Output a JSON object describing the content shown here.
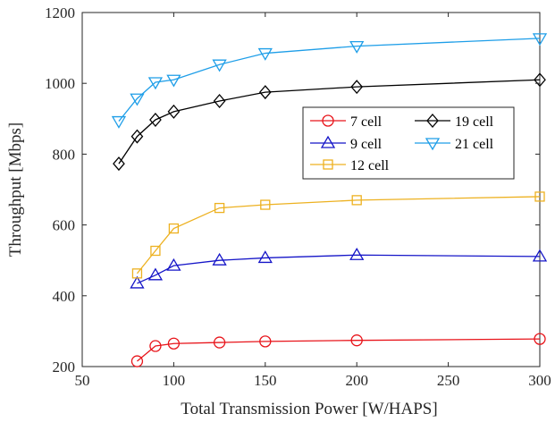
{
  "chart_data": {
    "type": "line",
    "title": "",
    "xlabel": "Total Transmission Power [W/HAPS]",
    "ylabel": "Throughput [Mbps]",
    "xlim": [
      50,
      300
    ],
    "ylim": [
      200,
      1200
    ],
    "xticks": [
      "50",
      "100",
      "150",
      "200",
      "250",
      "300"
    ],
    "yticks": [
      "200",
      "400",
      "600",
      "800",
      "1000",
      "1200"
    ],
    "grid": false,
    "legend_position": "center-right",
    "series": [
      {
        "name": "7 cell",
        "color": "#e8141a",
        "marker": "circle",
        "x": [
          80,
          90,
          100,
          125,
          150,
          200,
          300
        ],
        "y": [
          215,
          258,
          265,
          268,
          271,
          274,
          278
        ]
      },
      {
        "name": "9 cell",
        "color": "#1515c8",
        "marker": "triangle-up",
        "x": [
          80,
          90,
          100,
          125,
          150,
          200,
          300
        ],
        "y": [
          435,
          458,
          485,
          500,
          507,
          515,
          511
        ]
      },
      {
        "name": "12 cell",
        "color": "#edb120",
        "marker": "square",
        "x": [
          80,
          90,
          100,
          125,
          150,
          200,
          300
        ],
        "y": [
          463,
          527,
          590,
          648,
          657,
          670,
          680
        ]
      },
      {
        "name": "19 cell",
        "color": "#000000",
        "marker": "diamond",
        "x": [
          70,
          80,
          90,
          100,
          125,
          150,
          200,
          300
        ],
        "y": [
          773,
          850,
          897,
          920,
          950,
          975,
          990,
          1010
        ]
      },
      {
        "name": "21 cell",
        "color": "#1e9ee8",
        "marker": "triangle-down",
        "x": [
          70,
          80,
          90,
          100,
          125,
          150,
          200,
          300
        ],
        "y": [
          893,
          957,
          1003,
          1010,
          1053,
          1085,
          1105,
          1127
        ]
      }
    ]
  }
}
